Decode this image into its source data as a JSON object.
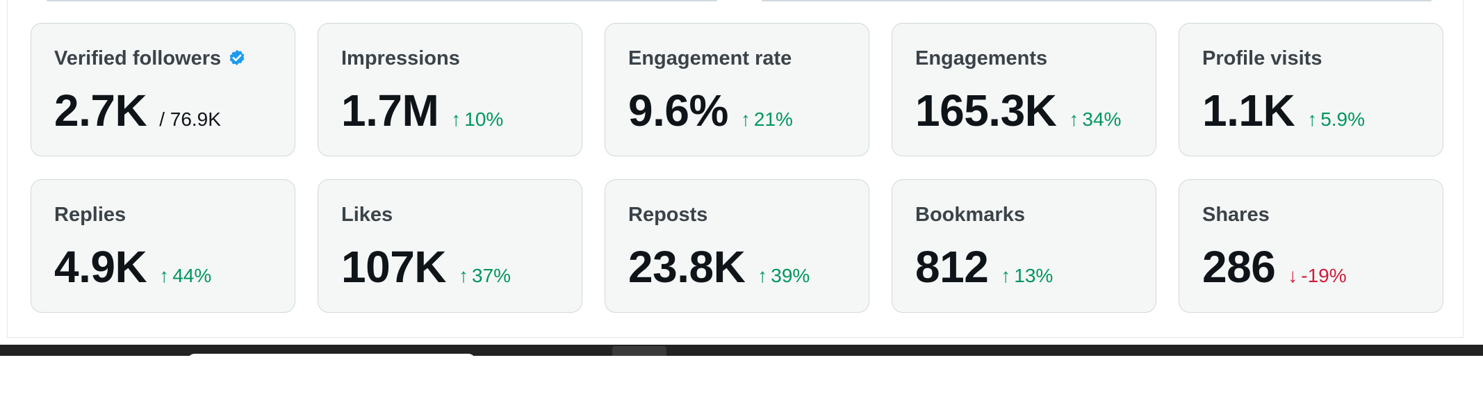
{
  "metrics": [
    {
      "label": "Verified followers",
      "value": "2.7K",
      "total": "/ 76.9K",
      "verified": true
    },
    {
      "label": "Impressions",
      "value": "1.7M",
      "change": "10%",
      "direction": "up"
    },
    {
      "label": "Engagement rate",
      "value": "9.6%",
      "change": "21%",
      "direction": "up"
    },
    {
      "label": "Engagements",
      "value": "165.3K",
      "change": "34%",
      "direction": "up"
    },
    {
      "label": "Profile visits",
      "value": "1.1K",
      "change": "5.9%",
      "direction": "up"
    },
    {
      "label": "Replies",
      "value": "4.9K",
      "change": "44%",
      "direction": "up"
    },
    {
      "label": "Likes",
      "value": "107K",
      "change": "37%",
      "direction": "up"
    },
    {
      "label": "Reposts",
      "value": "23.8K",
      "change": "39%",
      "direction": "up"
    },
    {
      "label": "Bookmarks",
      "value": "812",
      "change": "13%",
      "direction": "up"
    },
    {
      "label": "Shares",
      "value": "286",
      "change": "-19%",
      "direction": "down"
    }
  ],
  "icons": {
    "verified": "verified-badge-icon",
    "up": "arrow-up-icon",
    "down": "arrow-down-icon"
  },
  "colors": {
    "positive": "#00965f",
    "negative": "#d21c3c",
    "verified": "#1d9bf0",
    "card_bg": "#f5f7f6"
  }
}
